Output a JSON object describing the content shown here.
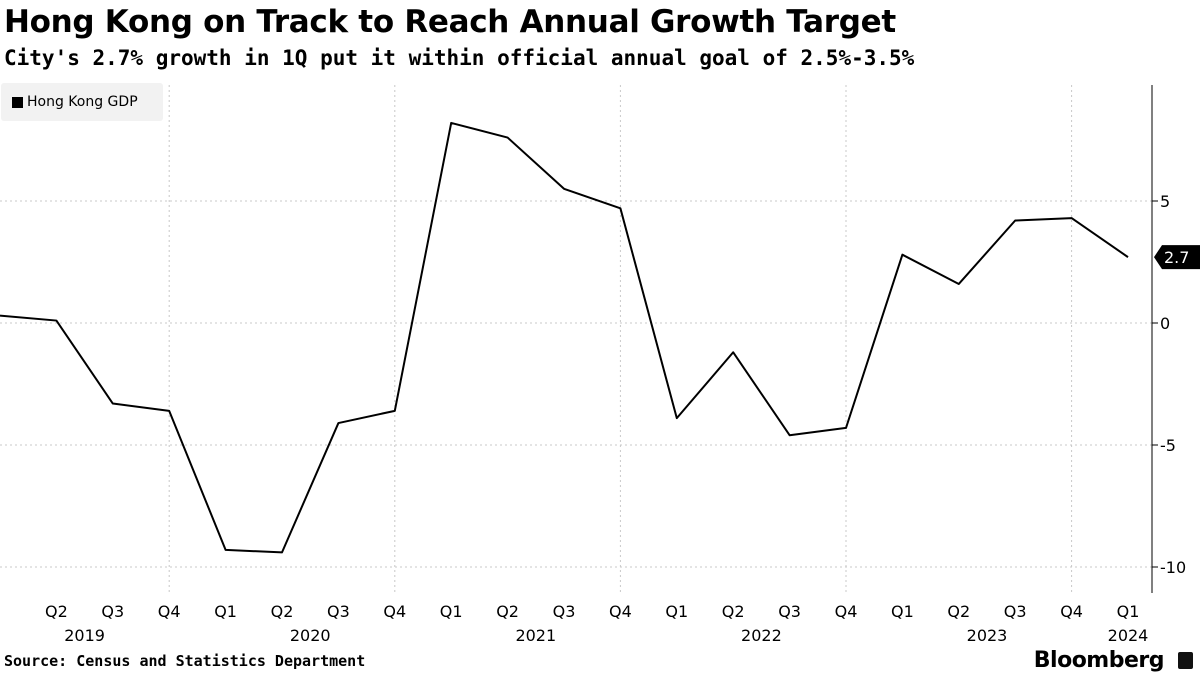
{
  "title": "Hong Kong on Track to Reach Annual Growth Target",
  "subtitle": "City's 2.7% growth in 1Q put it within official annual goal of 2.5%-3.5%",
  "source": "Source: Census and Statistics Department",
  "brand": "Bloomberg",
  "chart_data": {
    "type": "line",
    "legend": [
      "Hong Kong GDP"
    ],
    "legend_position": "top-left",
    "x": [
      "Q1 2019",
      "Q2 2019",
      "Q3 2019",
      "Q4 2019",
      "Q1 2020",
      "Q2 2020",
      "Q3 2020",
      "Q4 2020",
      "Q1 2021",
      "Q2 2021",
      "Q3 2021",
      "Q4 2021",
      "Q1 2022",
      "Q2 2022",
      "Q3 2022",
      "Q4 2022",
      "Q1 2023",
      "Q2 2023",
      "Q3 2023",
      "Q4 2023",
      "Q1 2024"
    ],
    "x_tick_labels": [
      "Q2",
      "Q3",
      "Q4",
      "Q1",
      "Q2",
      "Q3",
      "Q4",
      "Q1",
      "Q2",
      "Q3",
      "Q4",
      "Q1",
      "Q2",
      "Q3",
      "Q4",
      "Q1",
      "Q2",
      "Q3",
      "Q4",
      "Q1"
    ],
    "year_labels": [
      "2019",
      "2020",
      "2021",
      "2022",
      "2023",
      "2024"
    ],
    "series": [
      {
        "name": "Hong Kong GDP",
        "color": "#000000",
        "values": [
          0.3,
          0.1,
          -3.3,
          -3.6,
          -9.3,
          -9.4,
          -4.1,
          -3.6,
          8.2,
          7.6,
          5.5,
          4.7,
          -3.9,
          -1.2,
          -4.6,
          -4.3,
          2.8,
          1.6,
          4.2,
          4.3,
          2.7
        ]
      }
    ],
    "y_ticks": [
      "5",
      "0",
      "-5",
      "-10"
    ],
    "y_tick_values": [
      5,
      0,
      -5,
      -10
    ],
    "ylim": [
      -11,
      9.7
    ],
    "last_value_label": "2.7",
    "grid": true,
    "xlabel": "",
    "ylabel": ""
  }
}
